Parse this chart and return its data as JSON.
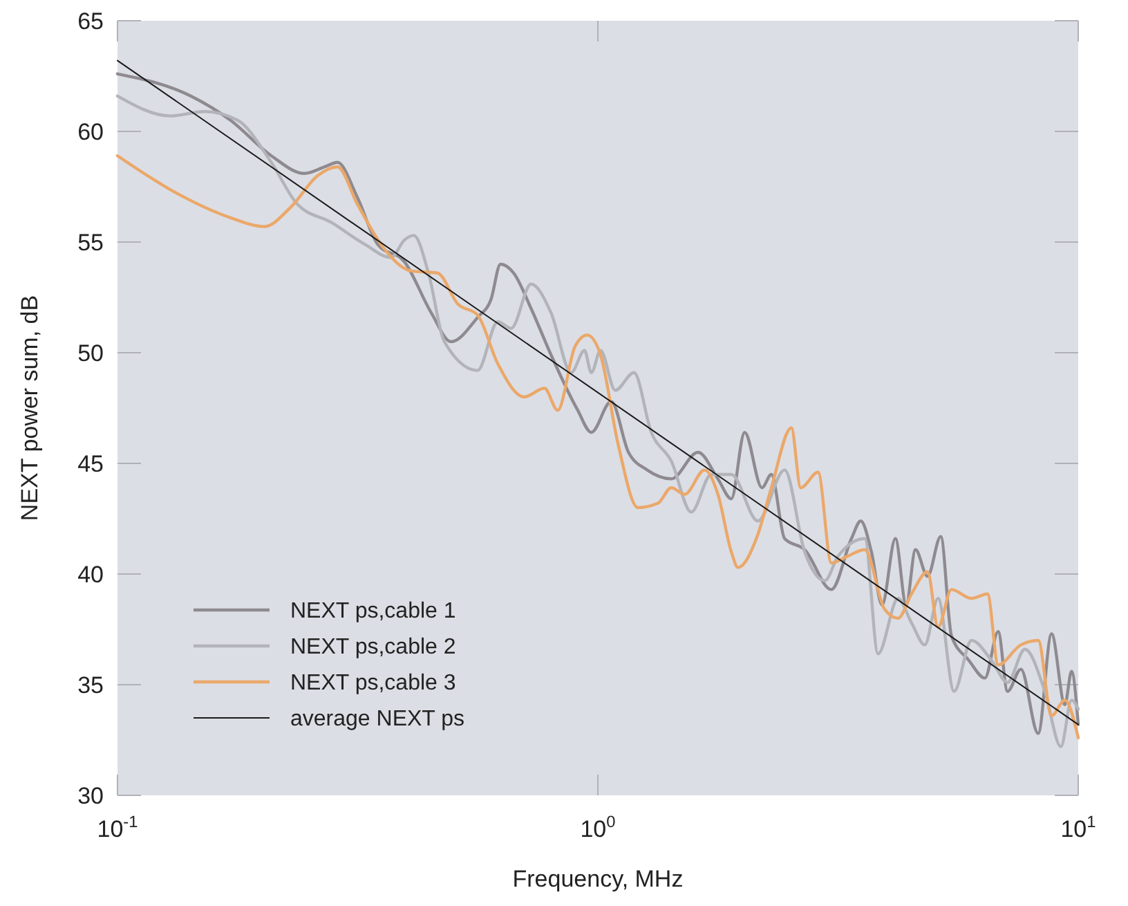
{
  "chart_data": {
    "type": "line",
    "xlabel": "Frequency, MHz",
    "ylabel": "NEXT power sum, dB",
    "log": "x",
    "xlim": [
      0.1,
      10
    ],
    "xticks": [
      {
        "value": 0.1,
        "label": "10$^{-1}$"
      },
      {
        "value": 1,
        "label": "10$^{0}$"
      },
      {
        "value": 10,
        "label": "10$^{1}$"
      }
    ],
    "ylim": [
      30,
      65
    ],
    "yticks": [
      30,
      35,
      40,
      45,
      50,
      55,
      60,
      65
    ],
    "grid": false,
    "legend": "bottom left",
    "marker": "none",
    "line_style": "solid",
    "series": [
      {
        "name": "NEXT ps,cable 1",
        "color": "#8e8a90",
        "x": [
          0.1,
          0.142,
          0.172,
          0.209,
          0.245,
          0.27,
          0.287,
          0.316,
          0.348,
          0.396,
          0.45,
          0.495,
          0.562,
          0.599,
          0.627,
          0.668,
          0.726,
          0.799,
          0.908,
          0.969,
          1.066,
          1.158,
          1.267,
          1.422,
          1.616,
          1.778,
          1.896,
          2.021,
          2.196,
          2.297,
          2.448,
          2.695,
          3.063,
          3.372,
          3.526,
          3.711,
          3.905,
          4.163,
          4.383,
          4.584,
          4.856,
          5.174,
          5.447,
          5.92,
          6.392,
          6.813,
          7.126,
          7.596,
          8.254,
          8.799,
          9.38,
          9.685,
          10
        ],
        "values": [
          62.6,
          61.6,
          60.5,
          58.9,
          58.1,
          58.4,
          58.6,
          57.0,
          54.9,
          54.1,
          51.8,
          50.5,
          51.6,
          52.4,
          54.0,
          53.6,
          52.0,
          49.9,
          47.4,
          46.4,
          47.8,
          45.5,
          44.7,
          44.3,
          45.5,
          44.3,
          43.4,
          46.4,
          43.9,
          44.5,
          41.6,
          41.1,
          39.3,
          41.6,
          42.4,
          41.0,
          38.6,
          41.6,
          38.6,
          41.1,
          39.9,
          41.7,
          37.2,
          36.1,
          35.3,
          37.4,
          34.7,
          35.7,
          32.8,
          37.3,
          34.1,
          35.6,
          33.2
        ]
      },
      {
        "name": "NEXT ps,cable 2",
        "color": "#b2b4ba",
        "x": [
          0.1,
          0.129,
          0.152,
          0.178,
          0.209,
          0.237,
          0.278,
          0.327,
          0.371,
          0.396,
          0.414,
          0.444,
          0.479,
          0.562,
          0.619,
          0.66,
          0.726,
          0.799,
          0.88,
          0.938,
          0.969,
          1.013,
          1.087,
          1.189,
          1.292,
          1.422,
          1.565,
          1.722,
          1.896,
          2.154,
          2.448,
          2.695,
          2.967,
          3.162,
          3.594,
          3.831,
          4.217,
          4.496,
          4.792,
          5.108,
          5.516,
          5.995,
          6.598,
          7.126,
          7.743,
          8.522,
          9.202,
          9.685,
          10
        ],
        "values": [
          61.6,
          60.7,
          60.9,
          60.5,
          58.6,
          56.7,
          55.9,
          54.9,
          54.3,
          55.1,
          55.3,
          53.6,
          50.5,
          49.2,
          51.4,
          51.1,
          53.1,
          51.8,
          49.1,
          50.1,
          49.1,
          50.1,
          48.3,
          49.1,
          46.4,
          45.1,
          42.8,
          44.5,
          44.5,
          42.4,
          44.7,
          41.0,
          39.7,
          40.8,
          41.6,
          36.4,
          38.9,
          37.8,
          36.8,
          38.9,
          34.7,
          37.0,
          36.1,
          35.1,
          36.6,
          34.7,
          32.2,
          34.3,
          33.9
        ]
      },
      {
        "name": "NEXT ps,cable 3",
        "color": "#eba86a",
        "x": [
          0.1,
          0.133,
          0.172,
          0.202,
          0.23,
          0.261,
          0.287,
          0.316,
          0.359,
          0.408,
          0.464,
          0.511,
          0.562,
          0.619,
          0.703,
          0.774,
          0.825,
          0.897,
          0.95,
          1.013,
          1.101,
          1.212,
          1.334,
          1.422,
          1.516,
          1.668,
          1.778,
          1.896,
          1.957,
          2.154,
          2.297,
          2.528,
          2.644,
          2.873,
          3.063,
          3.306,
          3.594,
          3.955,
          4.217,
          4.496,
          4.856,
          5.108,
          5.447,
          5.995,
          6.474,
          6.813,
          7.596,
          8.254,
          8.799,
          9.38,
          10
        ],
        "values": [
          58.9,
          57.2,
          56.1,
          55.7,
          56.6,
          58.0,
          58.4,
          56.7,
          54.7,
          53.7,
          53.6,
          52.2,
          51.7,
          49.5,
          48.0,
          48.4,
          47.4,
          50.3,
          50.8,
          49.9,
          45.9,
          43.0,
          43.2,
          43.9,
          43.6,
          44.7,
          43.6,
          41.0,
          40.3,
          41.8,
          43.9,
          46.6,
          43.9,
          44.6,
          40.5,
          40.8,
          41.1,
          38.4,
          38.0,
          39.1,
          40.1,
          37.6,
          39.3,
          38.9,
          39.1,
          35.9,
          36.8,
          37.0,
          33.6,
          34.3,
          32.6
        ]
      },
      {
        "name": "average NEXT ps",
        "color": "#1a1a1a",
        "x": [
          0.1,
          10
        ],
        "values": [
          63.2,
          33.2
        ]
      }
    ]
  }
}
